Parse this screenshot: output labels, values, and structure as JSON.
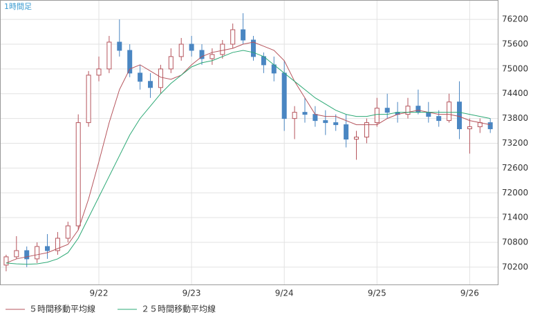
{
  "chart_data": {
    "type": "candlestick",
    "title": "1時間足",
    "categories": [
      null,
      null,
      null,
      null,
      null,
      null,
      null,
      null,
      null,
      "9/22",
      null,
      null,
      null,
      null,
      null,
      null,
      null,
      null,
      "9/23",
      null,
      null,
      null,
      null,
      null,
      null,
      null,
      null,
      "9/24",
      null,
      null,
      null,
      null,
      null,
      null,
      null,
      null,
      "9/25",
      null,
      null,
      null,
      null,
      null,
      null,
      null,
      null,
      "9/26",
      null,
      null
    ],
    "open": [
      70250,
      70450,
      70600,
      70400,
      70700,
      70600,
      70900,
      71200,
      73700,
      74850,
      75000,
      75650,
      75450,
      74900,
      74700,
      74550,
      75000,
      75300,
      75600,
      75450,
      75250,
      75350,
      75600,
      75950,
      75700,
      75300,
      75100,
      74900,
      73800,
      73950,
      73900,
      73750,
      73700,
      73650,
      73300,
      73350,
      73700,
      74050,
      73950,
      73900,
      74100,
      73950,
      73850,
      73750,
      74200,
      73550,
      73600,
      73700
    ],
    "high": [
      70500,
      70950,
      70700,
      70800,
      71000,
      71050,
      71300,
      73900,
      74950,
      75300,
      75800,
      76200,
      75600,
      75100,
      74900,
      75100,
      75500,
      75750,
      75800,
      75600,
      75500,
      75700,
      76100,
      76350,
      75800,
      75400,
      75300,
      75200,
      74100,
      74300,
      74100,
      74000,
      73900,
      73900,
      73500,
      73800,
      74300,
      74400,
      74200,
      74300,
      74500,
      74200,
      74000,
      74400,
      74700,
      73800,
      73800,
      73800
    ],
    "low": [
      70100,
      70400,
      70200,
      70300,
      70400,
      70500,
      70800,
      71100,
      73600,
      74700,
      74900,
      75300,
      74800,
      74500,
      74300,
      74400,
      74900,
      75200,
      75300,
      75100,
      75100,
      75250,
      75500,
      75600,
      75200,
      74900,
      74700,
      73500,
      73300,
      73700,
      73600,
      73400,
      73500,
      73100,
      72800,
      73200,
      73600,
      73800,
      73700,
      73800,
      73900,
      73700,
      73600,
      73700,
      73300,
      72950,
      73450,
      73450
    ],
    "close": [
      70450,
      70600,
      70400,
      70700,
      70600,
      70900,
      71200,
      73700,
      74850,
      75000,
      75650,
      75450,
      74900,
      74700,
      74550,
      75000,
      75300,
      75600,
      75450,
      75250,
      75350,
      75600,
      75950,
      75700,
      75300,
      75100,
      74900,
      73800,
      73950,
      73900,
      73750,
      73700,
      73650,
      73300,
      73350,
      73700,
      74050,
      73950,
      73900,
      74100,
      73950,
      73850,
      73750,
      74200,
      73550,
      73600,
      73700,
      73550
    ],
    "up_color": "#b5535b",
    "down_color": "#4a86c2",
    "series": [
      {
        "name": "５時間移動平均線",
        "color": "#b5535b",
        "values": [
          70300,
          70400,
          70450,
          70500,
          70550,
          70650,
          70750,
          71100,
          71850,
          72750,
          73700,
          74500,
          75000,
          75100,
          74950,
          74800,
          74750,
          74850,
          75100,
          75300,
          75400,
          75450,
          75500,
          75600,
          75650,
          75550,
          75450,
          75200,
          74700,
          74300,
          73900,
          73850,
          73850,
          73750,
          73650,
          73650,
          73650,
          73800,
          73900,
          73950,
          74000,
          73950,
          73900,
          73900,
          73850,
          73750,
          73700,
          73650
        ]
      },
      {
        "name": "２５時間移動平均線",
        "color": "#2aa874",
        "values": [
          70300,
          70280,
          70270,
          70280,
          70320,
          70400,
          70550,
          70900,
          71400,
          71900,
          72400,
          72900,
          73400,
          73800,
          74100,
          74400,
          74650,
          74850,
          75050,
          75150,
          75200,
          75300,
          75400,
          75450,
          75400,
          75300,
          75100,
          74900,
          74700,
          74500,
          74300,
          74150,
          74000,
          73900,
          73850,
          73850,
          73900,
          73900,
          73950,
          73950,
          73950,
          73950,
          73950,
          73950,
          73950,
          73900,
          73850,
          73800
        ]
      }
    ],
    "ylim": [
      69780,
      76670
    ],
    "yticks": [
      70200,
      70800,
      71400,
      72000,
      72600,
      73200,
      73800,
      74400,
      75000,
      75600,
      76200
    ],
    "grid": true
  }
}
